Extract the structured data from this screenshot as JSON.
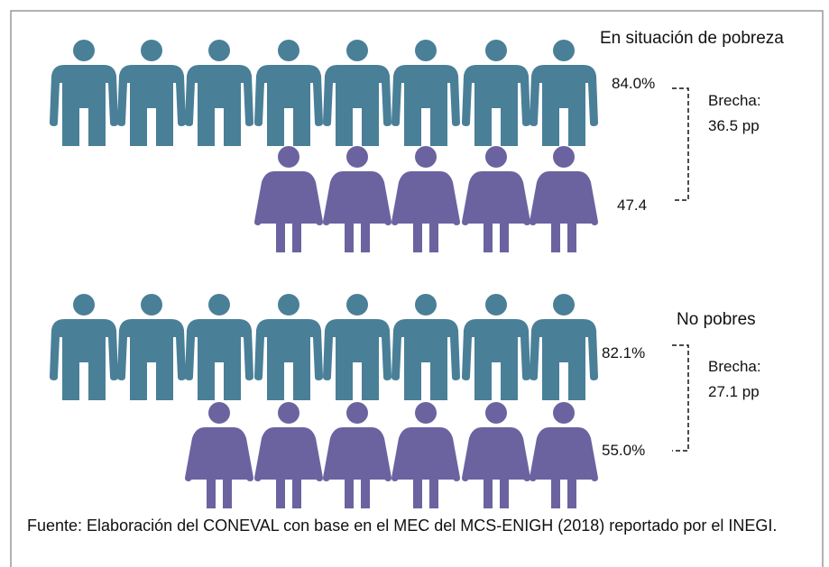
{
  "groups": [
    {
      "title": "En situación de pobreza",
      "men": "84.0%",
      "women": "47.4",
      "gap_label": "Brecha:",
      "gap": "36.5 pp"
    },
    {
      "title": "No pobres",
      "men": "82.1%",
      "women": "55.0%",
      "gap_label": "Brecha:",
      "gap": "27.1 pp"
    }
  ],
  "footer": "Fuente: Elaboración del CONEVAL con base en el MEC del MCS-ENIGH (2018) reportado por el INEGI."
}
